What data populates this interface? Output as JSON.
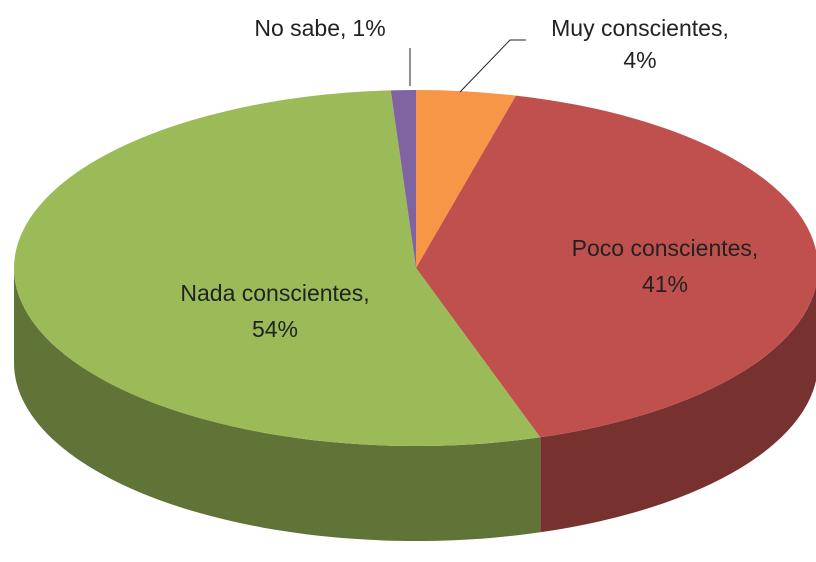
{
  "chart_data": {
    "type": "pie3d",
    "categories": [
      "Muy conscientes,",
      "Poco conscientes,",
      "Nada conscientes,",
      "No sabe,"
    ],
    "values": [
      4,
      41,
      54,
      1
    ],
    "value_labels": [
      "4%",
      "41%",
      "54%",
      "1%"
    ],
    "colors": [
      "#f79646",
      "#c0504d",
      "#9bbb59",
      "#8064a2"
    ]
  }
}
